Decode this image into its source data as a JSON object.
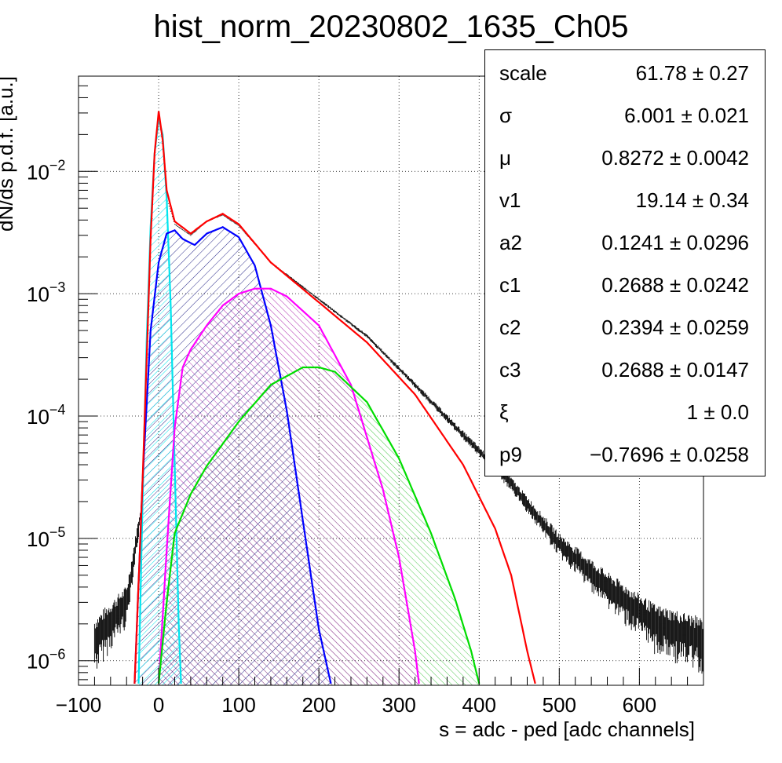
{
  "chart_data": {
    "type": "line",
    "title": "hist_norm_20230802_1635_Ch05",
    "xlabel": "s = adc - ped [adc channels]",
    "ylabel": "dN/ds p.d.f. [a.u.]",
    "xlim": [
      -100,
      680
    ],
    "ylim": [
      6.3e-07,
      0.06
    ],
    "yscale": "log",
    "grid": true,
    "x_ticks": [
      "−100",
      "0",
      "100",
      "200",
      "300",
      "400",
      "500",
      "600"
    ],
    "x_tick_values": [
      -100,
      0,
      100,
      200,
      300,
      400,
      500,
      600
    ],
    "y_ticks": [
      {
        "base": "10",
        "exp": "−2",
        "value": 0.01
      },
      {
        "base": "10",
        "exp": "−3",
        "value": 0.001
      },
      {
        "base": "10",
        "exp": "−4",
        "value": 0.0001
      },
      {
        "base": "10",
        "exp": "−5",
        "value": 1e-05
      },
      {
        "base": "10",
        "exp": "−6",
        "value": 1e-06
      }
    ],
    "series": [
      {
        "role": "histogram",
        "color": "#000000",
        "x": [
          -80,
          -40,
          -20,
          -10,
          -5,
          0,
          5,
          10,
          20,
          40,
          60,
          80,
          100,
          140,
          200,
          260,
          320,
          380,
          440,
          500,
          560,
          620,
          680
        ],
        "values": [
          1.5e-06,
          3e-06,
          2e-05,
          0.002,
          0.012,
          0.028,
          0.015,
          0.006,
          0.0037,
          0.003,
          0.0039,
          0.0044,
          0.0036,
          0.0018,
          0.0009,
          0.00045,
          0.00018,
          7e-05,
          2.8e-05,
          9e-06,
          4e-06,
          2e-06,
          1.5e-06
        ]
      },
      {
        "role": "total-fit",
        "color": "#ff0000",
        "x": [
          -30,
          -20,
          -10,
          -5,
          0,
          5,
          10,
          20,
          40,
          60,
          80,
          100,
          140,
          200,
          260,
          320,
          380,
          420,
          440,
          460,
          470
        ],
        "values": [
          6.5e-07,
          3e-05,
          0.0028,
          0.014,
          0.031,
          0.018,
          0.007,
          0.0039,
          0.0031,
          0.0039,
          0.0045,
          0.0037,
          0.0018,
          0.00085,
          0.0004,
          0.00015,
          4e-05,
          1.2e-05,
          5e-06,
          1.2e-06,
          6.5e-07
        ]
      },
      {
        "role": "pedestal",
        "color": "#00e5ee",
        "x": [
          -25,
          -20,
          -15,
          -10,
          -5,
          0,
          5,
          10,
          15,
          20,
          25,
          28
        ],
        "values": [
          6.5e-07,
          2e-05,
          0.0004,
          0.0035,
          0.014,
          0.027,
          0.02,
          0.006,
          0.0008,
          4e-05,
          2e-06,
          6.5e-07
        ]
      },
      {
        "role": "1-photoelectron",
        "color": "#0000ff",
        "x": [
          -30,
          -20,
          -10,
          0,
          10,
          20,
          30,
          45,
          60,
          80,
          100,
          120,
          140,
          160,
          180,
          200,
          215
        ],
        "values": [
          6.5e-07,
          3e-05,
          0.0005,
          0.0018,
          0.0031,
          0.0033,
          0.0028,
          0.0025,
          0.0031,
          0.0035,
          0.0029,
          0.0017,
          0.00055,
          0.00011,
          1.4e-05,
          1.8e-06,
          6.5e-07
        ]
      },
      {
        "role": "2-photoelectron",
        "color": "#ff00ff",
        "x": [
          0,
          10,
          20,
          30,
          40,
          60,
          80,
          100,
          120,
          140,
          160,
          200,
          240,
          280,
          300,
          320,
          325
        ],
        "values": [
          6.5e-07,
          8e-06,
          8e-05,
          0.00025,
          0.00035,
          0.00055,
          0.0008,
          0.001,
          0.0011,
          0.0011,
          0.00095,
          0.00055,
          0.00018,
          2.5e-05,
          7e-06,
          1.2e-06,
          6.5e-07
        ]
      },
      {
        "role": "3-photoelectron",
        "color": "#00dd00",
        "x": [
          0,
          10,
          20,
          40,
          60,
          100,
          140,
          180,
          200,
          220,
          260,
          300,
          340,
          370,
          390,
          400
        ],
        "values": [
          6.5e-07,
          3e-06,
          1.1e-05,
          2.3e-05,
          3.9e-05,
          9e-05,
          0.00018,
          0.00025,
          0.00025,
          0.00023,
          0.00013,
          4.5e-05,
          1.1e-05,
          3.2e-06,
          1.2e-06,
          6.5e-07
        ]
      }
    ]
  },
  "stats": [
    {
      "name": "scale",
      "value": "61.78 ± 0.27"
    },
    {
      "name": "σ",
      "value": "6.001 ± 0.021"
    },
    {
      "name": "μ",
      "value": "0.8272 ± 0.0042"
    },
    {
      "name": "v1",
      "value": "19.14 ± 0.34"
    },
    {
      "name": "a2",
      "value": "0.1241 ± 0.0296"
    },
    {
      "name": "c1",
      "value": "0.2688 ± 0.0242"
    },
    {
      "name": "c2",
      "value": "0.2394 ± 0.0259"
    },
    {
      "name": "c3",
      "value": "0.2688 ± 0.0147"
    },
    {
      "name": "ξ",
      "value": "1 ± 0.0"
    },
    {
      "name": "p9",
      "value": "−0.7696 ± 0.0258"
    }
  ]
}
